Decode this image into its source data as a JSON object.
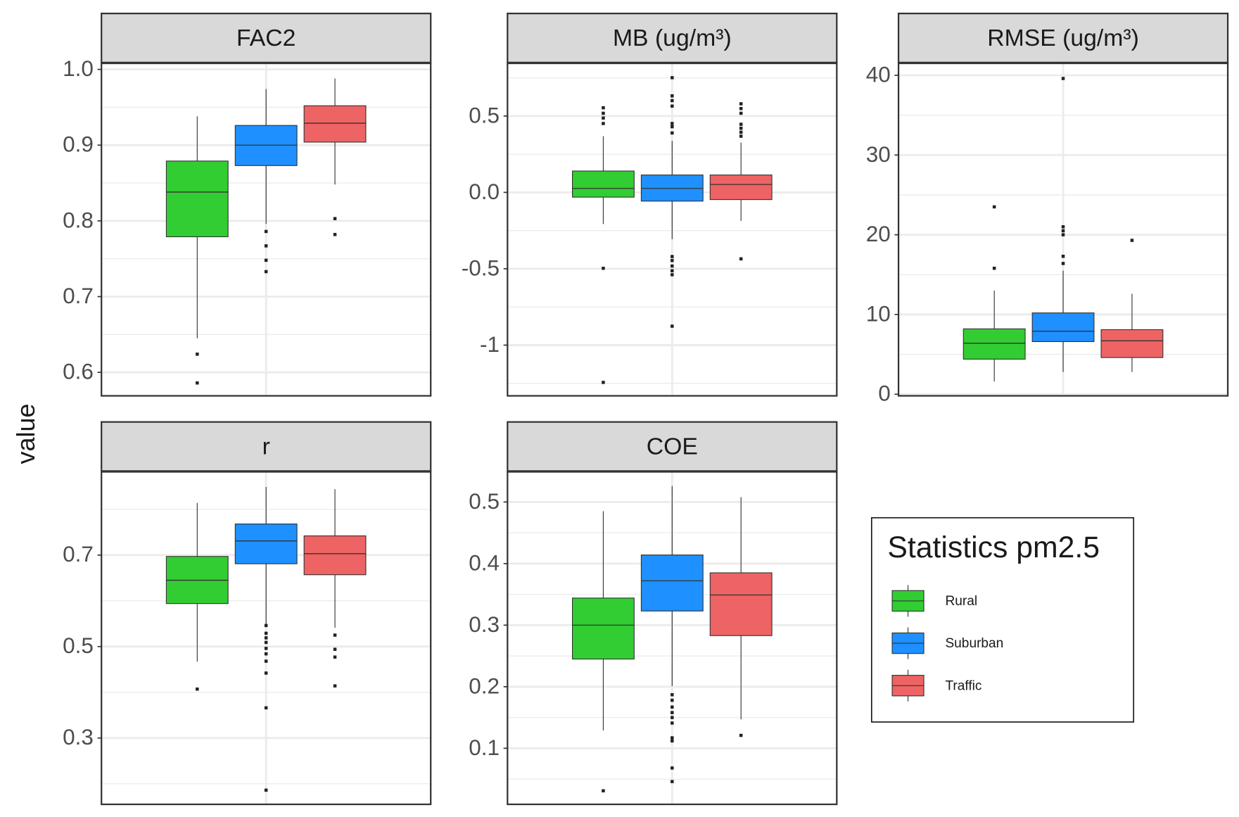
{
  "ylabel": "value",
  "legend": {
    "title": "Statistics pm2.5",
    "entries": [
      {
        "name": "Rural",
        "color": "#32cd32"
      },
      {
        "name": "Suburban",
        "color": "#1e90ff"
      },
      {
        "name": "Traffic",
        "color": "#ee6363"
      }
    ]
  },
  "chart_data": [
    {
      "type": "box",
      "title": "FAC2",
      "ylim": [
        0.569,
        1.008
      ],
      "yticks": [
        {
          "value": 0.6,
          "label": "0.6"
        },
        {
          "value": 0.7,
          "label": "0.7"
        },
        {
          "value": 0.8,
          "label": "0.8"
        },
        {
          "value": 0.9,
          "label": "0.9"
        },
        {
          "value": 1.0,
          "label": "1.0"
        }
      ],
      "minor_yticks": [
        0.65,
        0.75,
        0.85,
        0.95
      ],
      "grid": true,
      "boxes": [
        {
          "whislo": 0.645,
          "q1": 0.779,
          "median": 0.838,
          "q3": 0.879,
          "whishi": 0.938,
          "outliers": [
            0.624,
            0.586
          ]
        },
        {
          "whislo": 0.796,
          "q1": 0.873,
          "median": 0.9,
          "q3": 0.926,
          "whishi": 0.974,
          "outliers": [
            0.786,
            0.767,
            0.748,
            0.733
          ]
        },
        {
          "whislo": 0.848,
          "q1": 0.904,
          "median": 0.929,
          "q3": 0.952,
          "whishi": 0.988,
          "outliers": [
            0.803,
            0.782
          ]
        }
      ]
    },
    {
      "type": "box",
      "title": "MB (ug/m³)",
      "ylim": [
        -1.332,
        0.845
      ],
      "yticks": [
        -1.0,
        -0.5,
        {
          "value": 0.0,
          "label": "0.0"
        },
        0.5
      ],
      "minor_yticks": [
        -1.25,
        -0.75,
        -0.25,
        0.25,
        0.75
      ],
      "grid": true,
      "boxes": [
        {
          "whislo": -0.207,
          "q1": -0.031,
          "median": 0.026,
          "q3": 0.14,
          "whishi": 0.368,
          "outliers": [
            0.554,
            0.518,
            0.487,
            0.451,
            -0.497,
            -1.244
          ]
        },
        {
          "whislo": -0.306,
          "q1": -0.057,
          "median": 0.026,
          "q3": 0.114,
          "whishi": 0.337,
          "outliers": [
            0.751,
            0.632,
            0.601,
            0.565,
            0.451,
            0.43,
            0.389,
            -0.42,
            -0.446,
            -0.482,
            -0.513,
            -0.539,
            -0.876
          ]
        },
        {
          "whislo": -0.187,
          "q1": -0.047,
          "median": 0.052,
          "q3": 0.114,
          "whishi": 0.326,
          "outliers": [
            0.58,
            0.549,
            0.518,
            0.446,
            0.42,
            0.394,
            0.368,
            -0.435
          ]
        }
      ]
    },
    {
      "type": "box",
      "title": "RMSE (ug/m³)",
      "ylim": [
        -0.2,
        41.5
      ],
      "yticks": [
        0,
        10,
        20,
        30,
        40
      ],
      "minor_yticks": [
        5,
        15,
        25,
        35
      ],
      "grid": true,
      "boxes": [
        {
          "whislo": 1.6,
          "q1": 4.4,
          "median": 6.4,
          "q3": 8.2,
          "whishi": 13.0,
          "outliers": [
            23.5,
            15.8
          ]
        },
        {
          "whislo": 2.8,
          "q1": 6.6,
          "median": 7.9,
          "q3": 10.2,
          "whishi": 15.5,
          "outliers": [
            39.6,
            21.0,
            20.5,
            20.0,
            17.3,
            16.4
          ]
        },
        {
          "whislo": 2.8,
          "q1": 4.6,
          "median": 6.7,
          "q3": 8.1,
          "whishi": 12.6,
          "outliers": [
            19.3
          ]
        }
      ]
    },
    {
      "type": "box",
      "title": "r",
      "ylim": [
        0.155,
        0.882
      ],
      "yticks": [
        0.3,
        0.5,
        0.7
      ],
      "minor_yticks": [
        0.2,
        0.4,
        0.6,
        0.8
      ],
      "grid": true,
      "boxes": [
        {
          "whislo": 0.467,
          "q1": 0.594,
          "median": 0.645,
          "q3": 0.697,
          "whishi": 0.814,
          "outliers": [
            0.407
          ]
        },
        {
          "whislo": 0.549,
          "q1": 0.681,
          "median": 0.731,
          "q3": 0.768,
          "whishi": 0.849,
          "outliers": [
            0.546,
            0.529,
            0.519,
            0.509,
            0.496,
            0.484,
            0.468,
            0.442,
            0.366,
            0.186
          ]
        },
        {
          "whislo": 0.541,
          "q1": 0.657,
          "median": 0.703,
          "q3": 0.742,
          "whishi": 0.844,
          "outliers": [
            0.525,
            0.494,
            0.477,
            0.414
          ]
        }
      ]
    },
    {
      "type": "box",
      "title": "COE",
      "ylim": [
        0.009,
        0.549
      ],
      "yticks": [
        0.1,
        0.2,
        0.3,
        0.4,
        0.5
      ],
      "minor_yticks": [
        0.05,
        0.15,
        0.25,
        0.35,
        0.45
      ],
      "grid": true,
      "boxes": [
        {
          "whislo": 0.129,
          "q1": 0.245,
          "median": 0.3,
          "q3": 0.344,
          "whishi": 0.485,
          "outliers": [
            0.031
          ]
        },
        {
          "whislo": 0.201,
          "q1": 0.323,
          "median": 0.372,
          "q3": 0.414,
          "whishi": 0.526,
          "outliers": [
            0.187,
            0.178,
            0.167,
            0.158,
            0.15,
            0.141,
            0.117,
            0.112,
            0.068,
            0.046
          ]
        },
        {
          "whislo": 0.147,
          "q1": 0.283,
          "median": 0.349,
          "q3": 0.385,
          "whishi": 0.508,
          "outliers": [
            0.121
          ]
        }
      ]
    }
  ]
}
